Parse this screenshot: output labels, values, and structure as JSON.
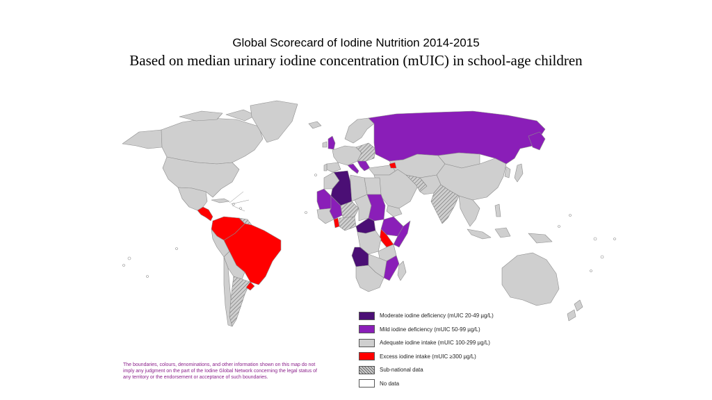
{
  "title": "Global Scorecard of Iodine Nutrition 2014-2015",
  "subtitle": "Based on median urinary iodine concentration (mUIC) in school-age children",
  "colors": {
    "moderate": "#4b0f75",
    "mild": "#8a1eb8",
    "adequate": "#cfcfcf",
    "excess": "#ff0000",
    "subnational": "#bdbdbd",
    "nodata": "#ffffff",
    "border": "#8c8c8c"
  },
  "legend": [
    {
      "key": "moderate",
      "label": "Moderate iodine deficiency (mUIC 20-49 µg/L)"
    },
    {
      "key": "mild",
      "label": "Mild iodine deficiency (mUIC 50-99 µg/L)"
    },
    {
      "key": "adequate",
      "label": "Adequate iodine intake (mUIC 100-299 µg/L)"
    },
    {
      "key": "excess",
      "label": "Excess iodine intake (mUIC ≥300 µg/L)"
    },
    {
      "key": "subnational",
      "label": "Sub-national data"
    },
    {
      "key": "nodata",
      "label": "No data"
    }
  ],
  "disclaimer": "The boundaries, colours, denominations, and other information shown on this map do not imply any judgment on the part of the Iodine Global Network concerning the legal status of any territory or the endorsement or acceptance of such boundaries."
}
